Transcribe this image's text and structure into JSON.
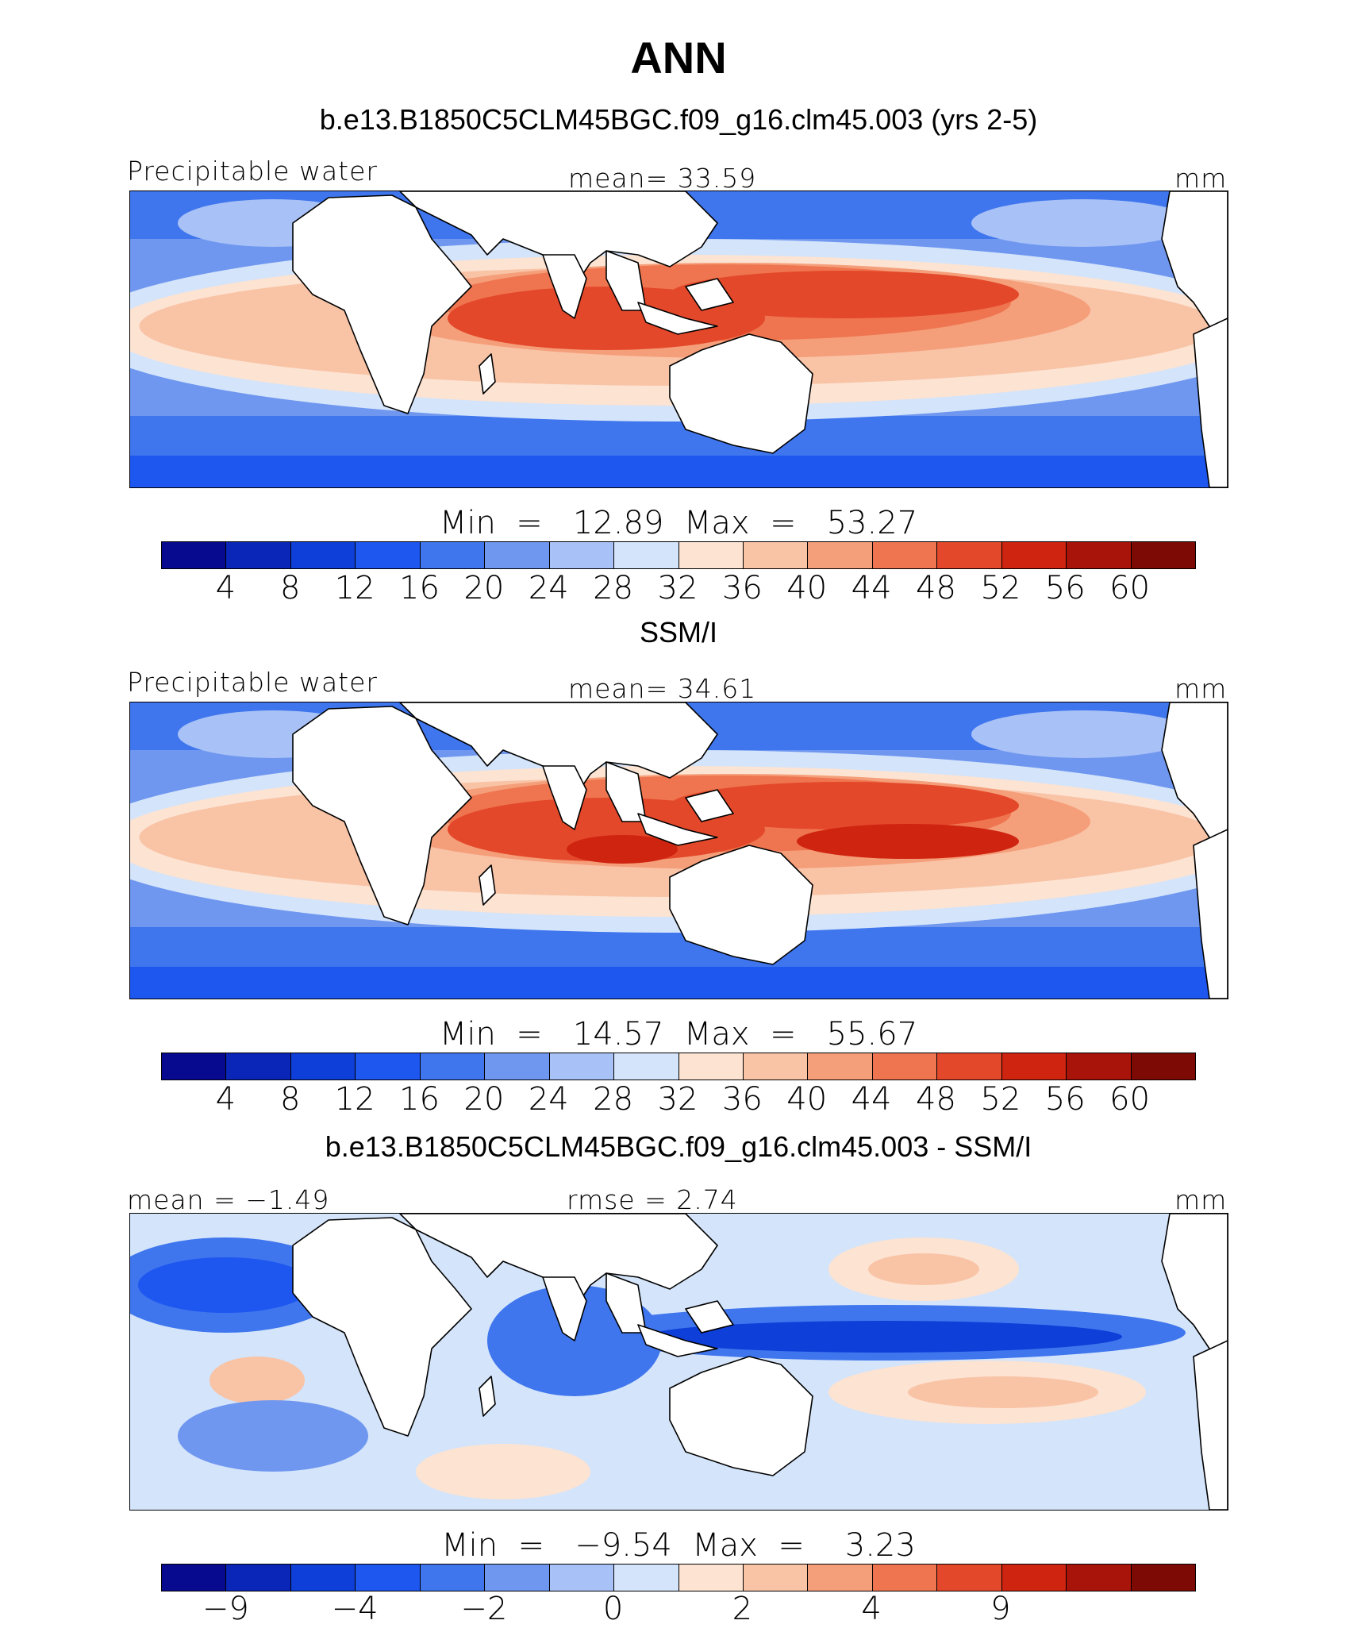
{
  "title": "ANN",
  "chart_data": [
    {
      "type": "heatmap",
      "title": "b.e13.B1850C5CLM45BGC.f09_g16.clm45.003 (yrs 2-5)",
      "variable_label": "Precipitable water",
      "stat_left": "Precipitable water",
      "stat_center": "mean=   33.59",
      "units": "mm",
      "minmax_text": "Min  =   12.89  Max  =   53.27",
      "mean": 33.59,
      "min": 12.89,
      "max": 53.27,
      "colorbar_ticks": [
        "4",
        "8",
        "12",
        "16",
        "20",
        "24",
        "28",
        "32",
        "36",
        "40",
        "44",
        "48",
        "52",
        "56",
        "60"
      ]
    },
    {
      "type": "heatmap",
      "title": "SSM/I",
      "variable_label": "Precipitable water",
      "stat_left": "Precipitable water",
      "stat_center": "mean=   34.61",
      "units": "mm",
      "minmax_text": "Min  =   14.57  Max  =   55.67",
      "mean": 34.61,
      "min": 14.57,
      "max": 55.67,
      "colorbar_ticks": [
        "4",
        "8",
        "12",
        "16",
        "20",
        "24",
        "28",
        "32",
        "36",
        "40",
        "44",
        "48",
        "52",
        "56",
        "60"
      ]
    },
    {
      "type": "heatmap",
      "title": "b.e13.B1850C5CLM45BGC.f09_g16.clm45.003 - SSM/I",
      "stat_left": "mean  =   −1.49",
      "stat_center": "rmse  =    2.74",
      "units": "mm",
      "minmax_text": "Min  =   −9.54  Max  =    3.23",
      "mean": -1.49,
      "rmse": 2.74,
      "min": -9.54,
      "max": 3.23,
      "colorbar_ticks": [
        "−9",
        "",
        "−4",
        "",
        "−2",
        "",
        "0",
        "",
        "2",
        "",
        "4",
        "",
        "9",
        "",
        ""
      ]
    }
  ],
  "colors": {
    "scale": [
      "#07098e",
      "#0a26b8",
      "#0e3fd8",
      "#1e56f0",
      "#3f76ee",
      "#6f97f0",
      "#a8c1f6",
      "#d4e4fa",
      "#fce3d2",
      "#f9c3a6",
      "#f59e7a",
      "#ee754f",
      "#e4482a",
      "#cf2410",
      "#a8130a",
      "#7d0a04"
    ]
  }
}
